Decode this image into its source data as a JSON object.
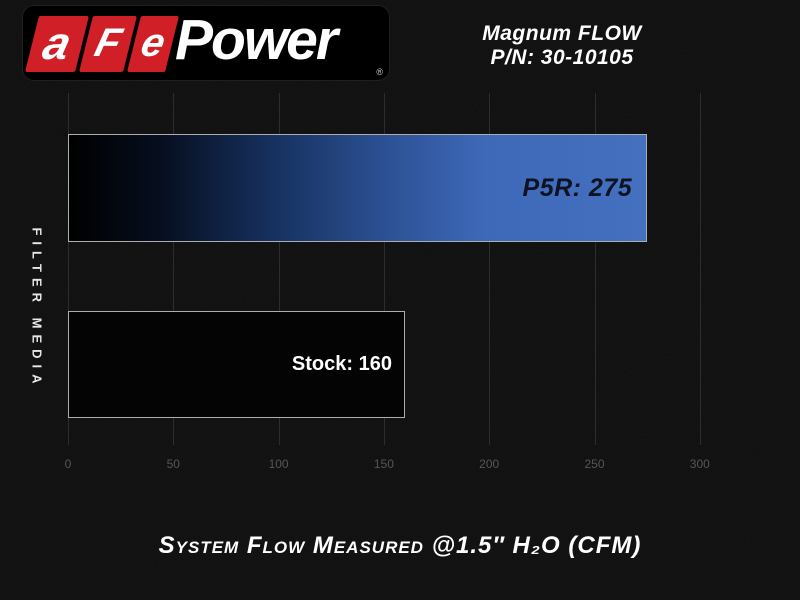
{
  "header": {
    "logo": {
      "tiles": [
        "a",
        "F",
        "e"
      ],
      "word": "Power",
      "registered_mark": "®"
    },
    "title": {
      "line1": "Magnum FLOW",
      "line2": "P/N: 30-10105"
    }
  },
  "chart_data": {
    "type": "bar",
    "orientation": "horizontal",
    "categories": [
      "P5R",
      "Stock"
    ],
    "values": [
      275,
      160
    ],
    "bar_labels": [
      "P5R: 275",
      "Stock: 160"
    ],
    "x_ticks": [
      0,
      50,
      100,
      150,
      200,
      250,
      300
    ],
    "xlim": [
      0,
      330
    ],
    "ylabel": "FILTER MEDIA",
    "xlabel": "System Flow Measured @1.5″ H₂O (CFM)",
    "grid": "vertical-only",
    "legend": "none"
  },
  "colors": {
    "background": "#0d0d0d",
    "logo_red": "#d01f27",
    "bar_blue": "#3e69b8",
    "bar_stock_fill": "#040404",
    "bar_border": "#adadad",
    "p5r_label_text": "#0c1322",
    "tick_text": "#565656",
    "gridline": "#2d2d2d"
  },
  "footer": {
    "caption": "System Flow Measured @1.5″ H₂O (CFM)"
  }
}
